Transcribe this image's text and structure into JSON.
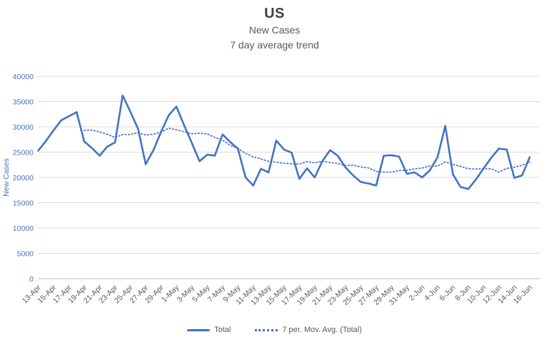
{
  "window": {
    "kind": "excel-style-chart"
  },
  "colors": {
    "series_blue": "#4472C4",
    "y_tick_label": "#4472C4",
    "x_tick_label": "#595959",
    "gridline": "#D9D9D9",
    "axis_line": "#BFBFBF",
    "title": "#404040",
    "subtitle": "#595959",
    "legend_text": "#595959",
    "background": "#FFFFFF"
  },
  "legend": {
    "total_label": "Total",
    "avg_label": "7 per. Mov. Avg. (Total)"
  },
  "chart_data": {
    "type": "line",
    "title": "US",
    "subtitle1": "New Cases",
    "subtitle2": "7 day average trend",
    "ylabel": "New Cases",
    "xlabel": "",
    "ylim": [
      0,
      40000
    ],
    "y_ticks": [
      0,
      5000,
      10000,
      15000,
      20000,
      25000,
      30000,
      35000,
      40000
    ],
    "grid": "horizontal",
    "legend_position": "bottom",
    "x_tick_labels": [
      "13-Apr",
      "15-Apr",
      "17-Apr",
      "19-Apr",
      "21-Apr",
      "23-Apr",
      "25-Apr",
      "27-Apr",
      "29-Apr",
      "1-May",
      "3-May",
      "5-May",
      "7-May",
      "9-May",
      "11-May",
      "13-May",
      "15-May",
      "17-May",
      "19-May",
      "21-May",
      "23-May",
      "25-May",
      "27-May",
      "29-May",
      "31-May",
      "2-Jun",
      "4-Jun",
      "6-Jun",
      "8-Jun",
      "10-Jun",
      "12-Jun",
      "14-Jun",
      "16-Jun"
    ],
    "dates": [
      "13-Apr",
      "14-Apr",
      "15-Apr",
      "16-Apr",
      "17-Apr",
      "18-Apr",
      "19-Apr",
      "20-Apr",
      "21-Apr",
      "22-Apr",
      "23-Apr",
      "24-Apr",
      "25-Apr",
      "26-Apr",
      "27-Apr",
      "28-Apr",
      "29-Apr",
      "30-Apr",
      "1-May",
      "2-May",
      "3-May",
      "4-May",
      "5-May",
      "6-May",
      "7-May",
      "8-May",
      "9-May",
      "10-May",
      "11-May",
      "12-May",
      "13-May",
      "14-May",
      "15-May",
      "16-May",
      "17-May",
      "18-May",
      "19-May",
      "20-May",
      "21-May",
      "22-May",
      "23-May",
      "24-May",
      "25-May",
      "26-May",
      "27-May",
      "28-May",
      "29-May",
      "30-May",
      "31-May",
      "1-Jun",
      "2-Jun",
      "3-Jun",
      "4-Jun",
      "5-Jun",
      "6-Jun",
      "7-Jun",
      "8-Jun",
      "9-Jun",
      "10-Jun",
      "11-Jun",
      "12-Jun",
      "13-Jun",
      "14-Jun",
      "15-Jun",
      "16-Jun"
    ],
    "series": [
      {
        "name": "Total",
        "style": "solid",
        "values": [
          25300,
          27200,
          29300,
          31300,
          32100,
          32900,
          27100,
          25800,
          24300,
          26100,
          26900,
          36200,
          33000,
          29600,
          22600,
          25400,
          29000,
          32300,
          34000,
          30300,
          26800,
          23200,
          24500,
          24300,
          28500,
          27000,
          25700,
          20000,
          18400,
          21700,
          21000,
          27300,
          25500,
          24900,
          19700,
          21800,
          20000,
          23200,
          25400,
          24300,
          22000,
          20400,
          19100,
          18800,
          18400,
          24300,
          24400,
          24100,
          20700,
          21000,
          20000,
          21400,
          24000,
          30200,
          20600,
          18100,
          17700,
          19600,
          21800,
          23900,
          25700,
          25500,
          19900,
          20400,
          24000
        ]
      },
      {
        "name": "7 per. Mov. Avg. (Total)",
        "style": "dotted",
        "derived": "trailing 7-period moving average of Total",
        "window": 7,
        "start_index": 6,
        "values": [
          29314,
          29386,
          28971,
          28514,
          27886,
          28471,
          28486,
          28843,
          28386,
          28543,
          28957,
          29729,
          29414,
          29029,
          28629,
          28714,
          28586,
          27914,
          27371,
          26371,
          25714,
          24743,
          24057,
          23657,
          23186,
          23014,
          22800,
          22686,
          22643,
          23129,
          22886,
          23200,
          22929,
          22757,
          22343,
          22443,
          22057,
          21886,
          21200,
          21043,
          21057,
          21357,
          21400,
          21671,
          21843,
          22271,
          22229,
          23057,
          22557,
          22186,
          21714,
          21657,
          21714,
          21700,
          21057,
          21757,
          22014,
          22400,
          23029
        ]
      }
    ]
  }
}
